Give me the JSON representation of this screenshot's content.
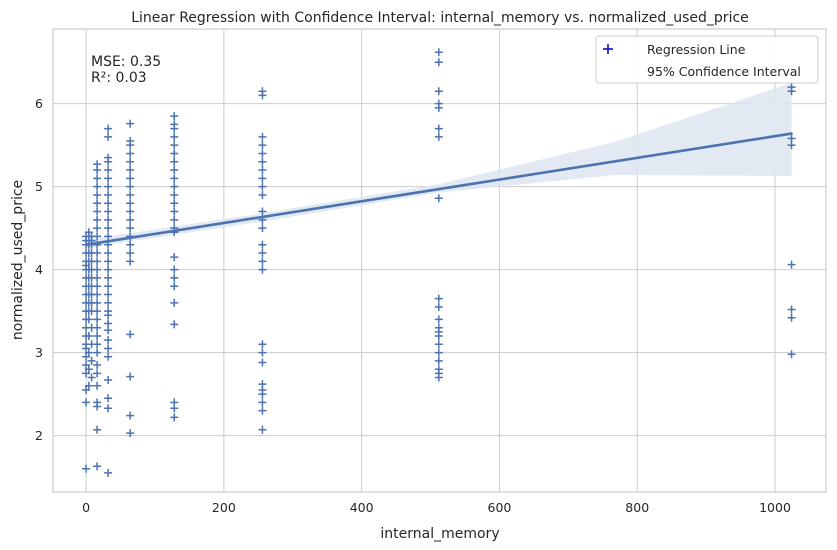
{
  "chart_data": {
    "type": "scatter",
    "title": "Linear Regression with Confidence Interval: internal_memory vs. normalized_used_price",
    "xlabel": "internal_memory",
    "ylabel": "normalized_used_price",
    "xlim": [
      -48,
      1074
    ],
    "ylim": [
      1.32,
      6.9
    ],
    "xticks": [
      0,
      200,
      400,
      600,
      800,
      1000
    ],
    "yticks": [
      2,
      3,
      4,
      5,
      6
    ],
    "grid": true,
    "legend": {
      "placement": "top-right",
      "entries": [
        "Regression Line",
        "95% Confidence Interval"
      ]
    },
    "annotations": [
      "MSE: 0.35",
      "R²: 0.03"
    ],
    "colors": {
      "points": "#4c72b0",
      "line": "#4c72b0",
      "band": "#dde5f1",
      "legend_marker": "#0000cc"
    },
    "regression_line": {
      "x": [
        0,
        1024
      ],
      "y": [
        4.3,
        5.64
      ]
    },
    "confidence_band": {
      "x": [
        0,
        256,
        512,
        768,
        1024
      ],
      "upper": [
        4.36,
        4.68,
        5.03,
        5.54,
        6.25
      ],
      "lower": [
        4.26,
        4.58,
        4.93,
        5.14,
        5.13
      ]
    },
    "points": [
      {
        "x": 0,
        "y": [
          1.6,
          2.4,
          2.55,
          2.75,
          2.85,
          2.95,
          3.05,
          3.1,
          3.2,
          3.3,
          3.4,
          3.5,
          3.6,
          3.7,
          3.8,
          3.9,
          4.0,
          4.05,
          4.1,
          4.2,
          4.3,
          4.35,
          4.4
        ]
      },
      {
        "x": 4,
        "y": [
          2.6,
          2.8,
          3.0,
          3.2,
          3.4,
          3.5,
          3.6,
          3.7,
          3.8,
          3.9,
          4.0,
          4.1,
          4.2,
          4.3,
          4.4,
          4.45
        ]
      },
      {
        "x": 8,
        "y": [
          2.7,
          2.9,
          3.1,
          3.3,
          3.5,
          3.6,
          3.7,
          3.8,
          3.9,
          4.0,
          4.1,
          4.2,
          4.3,
          4.35,
          4.4
        ]
      },
      {
        "x": 16,
        "y": [
          1.63,
          2.07,
          2.35,
          2.4,
          2.6,
          2.75,
          2.85,
          3.0,
          3.1,
          3.2,
          3.3,
          3.4,
          3.5,
          3.6,
          3.7,
          3.8,
          3.9,
          4.0,
          4.1,
          4.2,
          4.3,
          4.4,
          4.5,
          4.6,
          4.7,
          4.8,
          4.9,
          5.0,
          5.1,
          5.2,
          5.27
        ]
      },
      {
        "x": 32,
        "y": [
          1.55,
          2.33,
          2.45,
          2.67,
          2.95,
          3.05,
          3.15,
          3.27,
          3.35,
          3.45,
          3.5,
          3.6,
          3.7,
          3.8,
          3.9,
          4.0,
          4.1,
          4.2,
          4.3,
          4.4,
          4.5,
          4.6,
          4.7,
          4.8,
          4.9,
          5.0,
          5.1,
          5.2,
          5.3,
          5.35,
          5.6,
          5.7
        ]
      },
      {
        "x": 64,
        "y": [
          2.03,
          2.24,
          2.71,
          3.22,
          4.1,
          4.2,
          4.3,
          4.4,
          4.5,
          4.6,
          4.7,
          4.8,
          4.9,
          5.0,
          5.1,
          5.2,
          5.3,
          5.4,
          5.5,
          5.55,
          5.76
        ]
      },
      {
        "x": 128,
        "y": [
          2.22,
          2.33,
          2.4,
          3.34,
          3.6,
          3.8,
          3.9,
          4.0,
          4.15,
          4.45,
          4.5,
          4.6,
          4.7,
          4.8,
          4.9,
          5.0,
          5.1,
          5.2,
          5.3,
          5.4,
          5.5,
          5.6,
          5.7,
          5.75,
          5.85
        ]
      },
      {
        "x": 256,
        "y": [
          2.07,
          2.3,
          2.4,
          2.5,
          2.55,
          2.62,
          2.88,
          3.0,
          3.1,
          4.0,
          4.1,
          4.2,
          4.3,
          4.5,
          4.6,
          4.7,
          4.9,
          5.0,
          5.1,
          5.2,
          5.3,
          5.4,
          5.5,
          5.6,
          6.1,
          6.15
        ]
      },
      {
        "x": 512,
        "y": [
          2.7,
          2.75,
          2.8,
          2.9,
          3.0,
          3.1,
          3.2,
          3.25,
          3.3,
          3.4,
          3.55,
          3.65,
          4.86,
          5.6,
          5.7,
          5.95,
          6.0,
          6.15,
          6.5,
          6.62
        ]
      },
      {
        "x": 1024,
        "y": [
          2.98,
          3.42,
          3.52,
          4.06,
          5.5,
          5.58,
          6.15,
          6.2
        ]
      }
    ]
  }
}
